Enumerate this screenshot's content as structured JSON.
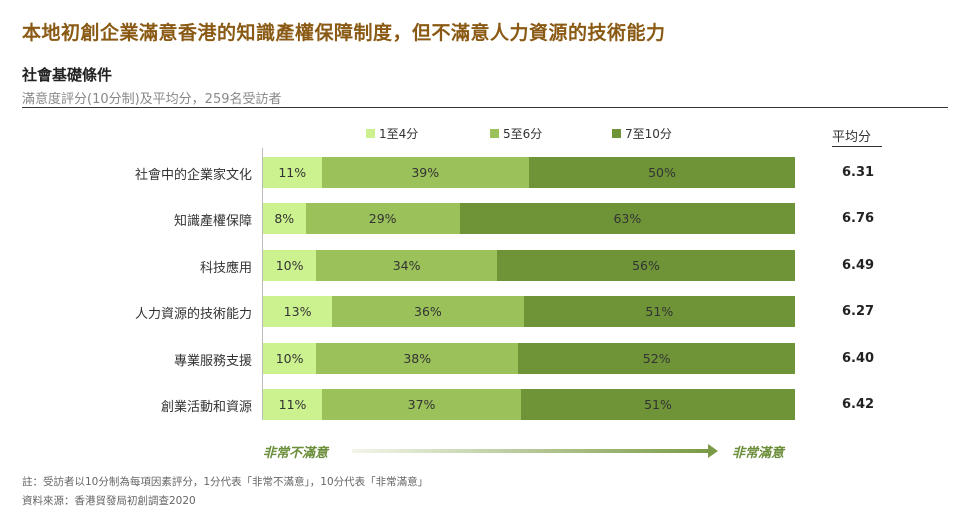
{
  "header": {
    "title": "本地初創企業滿意香港的知識產權保障制度，但不滿意人力資源的技術能力",
    "subtitle": "社會基礎條件",
    "caption": "滿意度評分(10分制)及平均分，259名受訪者"
  },
  "legend": [
    {
      "label": "1至4分",
      "color": "#ccf28f"
    },
    {
      "label": "5至6分",
      "color": "#9bc15a"
    },
    {
      "label": "7至10分",
      "color": "#6f9438"
    }
  ],
  "avg_header": "平均分",
  "scale": {
    "left": "非常不滿意",
    "right": "非常滿意"
  },
  "footnotes": {
    "note": "註：受訪者以10分制為每項因素評分，1分代表「非常不滿意」，10分代表「非常滿意」",
    "source": "資料來源：香港貿發局初創調查2020"
  },
  "chart_data": {
    "type": "bar",
    "orientation": "horizontal",
    "stacked": true,
    "normalized": true,
    "categories": [
      "社會中的企業家文化",
      "知識產權保障",
      "科技應用",
      "人力資源的技術能力",
      "專業服務支援",
      "創業活動和資源"
    ],
    "series": [
      {
        "name": "1至4分",
        "values": [
          11,
          8,
          10,
          13,
          10,
          11
        ],
        "labels": [
          "11%",
          "8%",
          "10%",
          "13%",
          "10%",
          "11%"
        ]
      },
      {
        "name": "5至6分",
        "values": [
          39,
          29,
          34,
          36,
          38,
          37
        ],
        "labels": [
          "39%",
          "29%",
          "34%",
          "36%",
          "38%",
          "37%"
        ]
      },
      {
        "name": "7至10分",
        "values": [
          50,
          63,
          56,
          51,
          52,
          51
        ],
        "labels": [
          "50%",
          "63%",
          "56%",
          "51%",
          "52%",
          "51%"
        ]
      }
    ],
    "averages": [
      "6.31",
      "6.76",
      "6.49",
      "6.27",
      "6.40",
      "6.42"
    ],
    "xlim": [
      0,
      100
    ]
  }
}
